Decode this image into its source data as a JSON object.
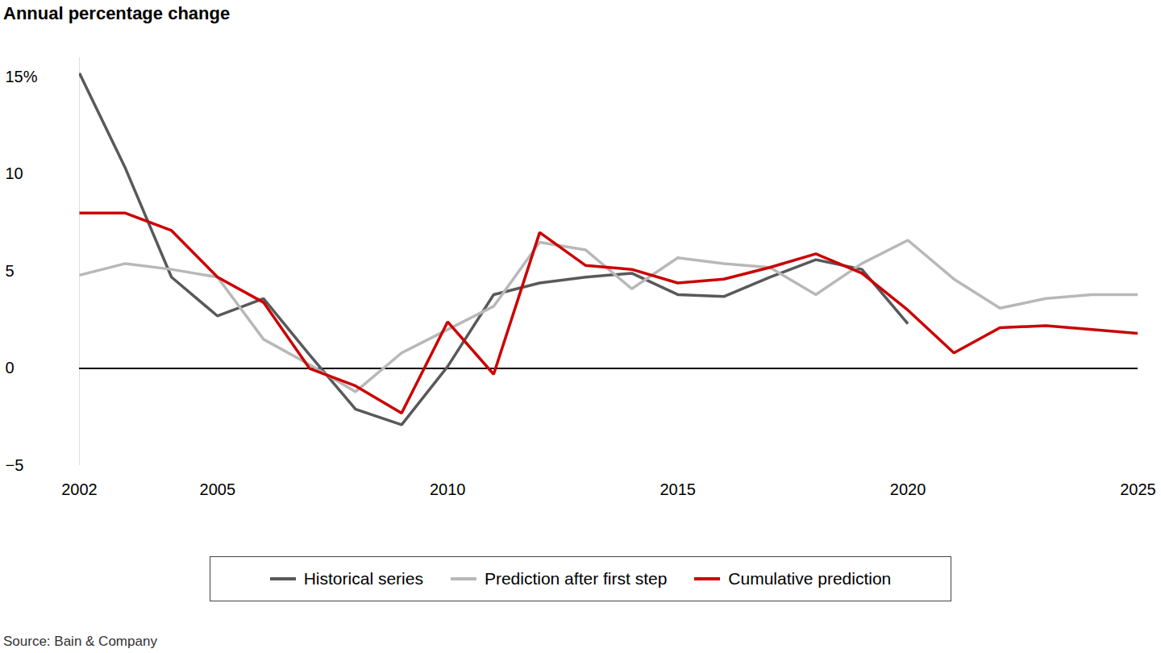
{
  "chart_data": {
    "type": "line",
    "ylabel": "Annual percentage change",
    "source": "Source: Bain & Company",
    "x": [
      2002,
      2003,
      2004,
      2005,
      2006,
      2007,
      2008,
      2009,
      2010,
      2011,
      2012,
      2013,
      2014,
      2015,
      2016,
      2017,
      2018,
      2019,
      2020,
      2021,
      2022,
      2023,
      2024,
      2025
    ],
    "xlim": [
      2002,
      2025
    ],
    "xticks": [
      2002,
      2005,
      2010,
      2015,
      2020,
      2025
    ],
    "ylim": [
      -5,
      16
    ],
    "yticks": [
      {
        "value": -5,
        "label": "−5"
      },
      0,
      5,
      10,
      {
        "value": 15,
        "label": "15%"
      }
    ],
    "grid": false,
    "series": [
      {
        "name": "Historical series",
        "color": "#58595b",
        "values": [
          15.2,
          10.3,
          4.7,
          2.7,
          3.6,
          0.7,
          -2.1,
          -2.9,
          0.1,
          3.8,
          4.4,
          4.7,
          4.9,
          3.8,
          3.7,
          4.7,
          5.6,
          5.1,
          2.3,
          null,
          null,
          null,
          null,
          null
        ]
      },
      {
        "name": "Prediction after first step",
        "color": "#b8b8b8",
        "values": [
          4.8,
          5.4,
          5.1,
          4.7,
          1.5,
          0.2,
          -1.2,
          0.8,
          2.0,
          3.2,
          6.5,
          6.1,
          4.1,
          5.7,
          5.4,
          5.2,
          3.8,
          5.4,
          6.6,
          4.6,
          3.1,
          3.6,
          3.8,
          3.8
        ]
      },
      {
        "name": "Cumulative prediction",
        "color": "#cc0000",
        "values": [
          8.0,
          8.0,
          7.1,
          4.7,
          3.4,
          0.0,
          -0.9,
          -2.3,
          2.4,
          -0.3,
          7.0,
          5.3,
          5.1,
          4.4,
          4.6,
          5.2,
          5.9,
          4.9,
          3.0,
          0.8,
          2.1,
          2.2,
          2.0,
          1.8
        ]
      }
    ]
  }
}
